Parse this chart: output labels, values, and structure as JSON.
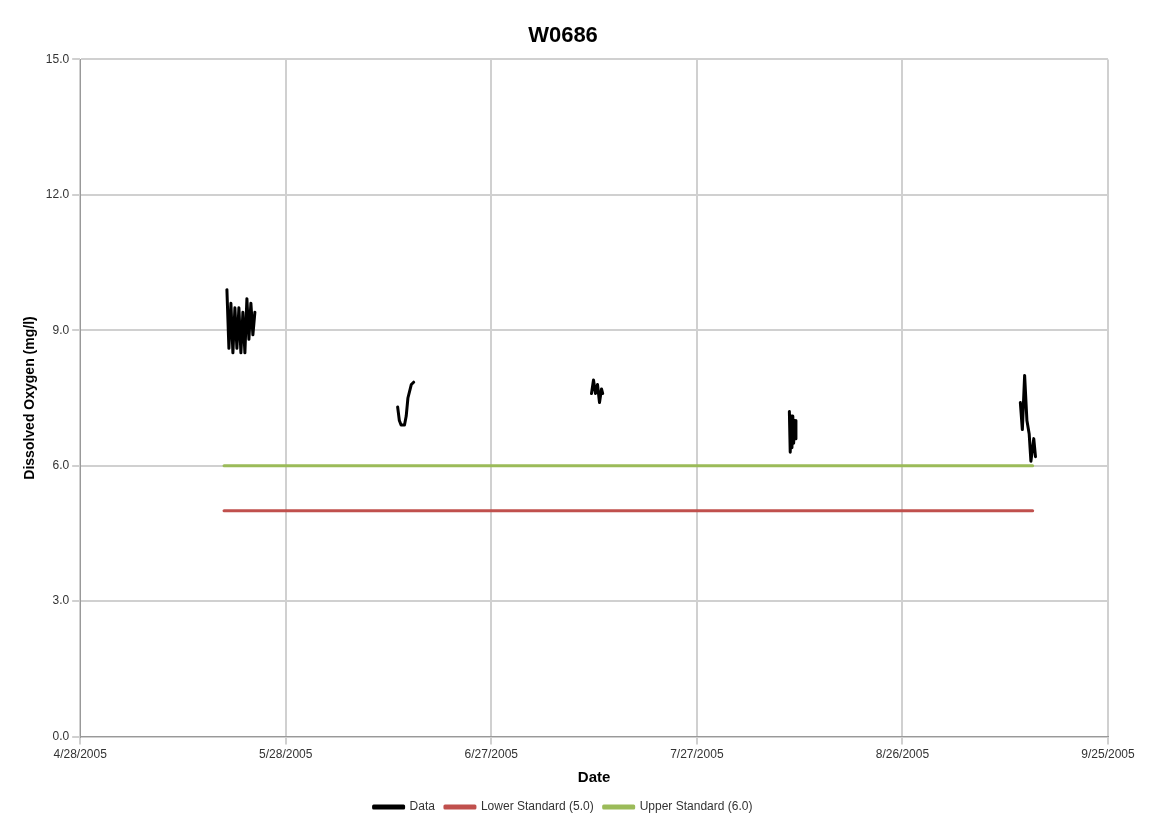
{
  "chart_data": {
    "type": "line",
    "title": "W0686",
    "xlabel": "Date",
    "ylabel": "Dissolved Oxygen (mg/l)",
    "xlim": [
      "2005-04-28",
      "2005-09-25"
    ],
    "xticks": [
      {
        "value": "2005-04-28",
        "label": "4/28/2005"
      },
      {
        "value": "2005-05-28",
        "label": "5/28/2005"
      },
      {
        "value": "2005-06-27",
        "label": "6/27/2005"
      },
      {
        "value": "2005-07-27",
        "label": "7/27/2005"
      },
      {
        "value": "2005-08-26",
        "label": "8/26/2005"
      },
      {
        "value": "2005-09-25",
        "label": "9/25/2005"
      }
    ],
    "ylim": [
      0,
      15
    ],
    "yticks": [
      {
        "value": 0,
        "label": "0.0"
      },
      {
        "value": 3,
        "label": "3.0"
      },
      {
        "value": 6,
        "label": "6.0"
      },
      {
        "value": 9,
        "label": "9.0"
      },
      {
        "value": 12,
        "label": "12.0"
      },
      {
        "value": 15,
        "label": "15.0"
      }
    ],
    "grid": true,
    "legend": "bottom",
    "marker": "none",
    "line_style": "solid",
    "series": [
      {
        "name": "Data",
        "color": "#000000",
        "x": [
          "2005-05-19T10:00",
          "2005-05-19T17:00",
          "2005-05-20T00:00",
          "2005-05-20T07:00",
          "2005-05-20T14:00",
          "2005-05-20T21:00",
          "2005-05-21T04:00",
          "2005-05-21T11:00",
          "2005-05-21T18:00",
          "2005-05-22T01:00",
          "2005-05-22T08:00",
          "2005-05-22T15:00",
          "2005-05-22T22:00",
          "2005-05-23T05:00",
          "2005-05-23T12:00",
          "2005-06-01",
          "2005-06-13T08:00",
          "2005-06-13T14:00",
          "2005-06-13T20:00",
          "2005-06-14T02:00",
          "2005-06-14T08:00",
          "2005-06-14T14:00",
          "2005-06-14T20:00",
          "2005-06-15T08:00",
          "2005-06-15T16:00",
          "2005-07-01",
          "2005-07-11T15:00",
          "2005-07-11T22:00",
          "2005-07-12T05:00",
          "2005-07-12T12:00",
          "2005-07-12T19:00",
          "2005-07-13T02:00",
          "2005-07-13T06:00",
          "2005-07-25",
          "2005-08-09T12:00",
          "2005-08-09T15:00",
          "2005-08-09T18:00",
          "2005-08-09T21:00",
          "2005-08-10T00:00",
          "2005-08-10T03:00",
          "2005-08-10T06:00",
          "2005-08-10T09:00",
          "2005-08-10T11:00",
          "2005-08-25",
          "2005-09-12T05:00",
          "2005-09-12T12:00",
          "2005-09-12T20:00",
          "2005-09-13T04:00",
          "2005-09-13T12:00",
          "2005-09-13T18:00",
          "2005-09-14T04:00",
          "2005-09-14T10:00"
        ],
        "values": [
          9.9,
          8.6,
          9.6,
          8.5,
          9.5,
          8.6,
          9.5,
          8.5,
          9.4,
          8.5,
          9.7,
          8.8,
          9.6,
          8.9,
          9.4,
          null,
          7.3,
          7.0,
          6.9,
          6.9,
          6.9,
          7.1,
          7.5,
          7.8,
          7.85,
          null,
          7.6,
          7.9,
          7.6,
          7.8,
          7.4,
          7.7,
          7.6,
          null,
          7.2,
          6.3,
          7.1,
          6.4,
          7.1,
          6.5,
          7.0,
          6.6,
          7.0,
          null,
          7.4,
          6.8,
          8.0,
          7.0,
          6.7,
          6.1,
          6.6,
          6.2
        ]
      },
      {
        "name": "Lower Standard (5.0)",
        "color": "#c0504d",
        "x": [
          "2005-05-19",
          "2005-09-14"
        ],
        "values": [
          5,
          5
        ]
      },
      {
        "name": "Upper Standard (6.0)",
        "color": "#9bbb59",
        "x": [
          "2005-05-19",
          "2005-09-14"
        ],
        "values": [
          6,
          6
        ]
      }
    ]
  }
}
